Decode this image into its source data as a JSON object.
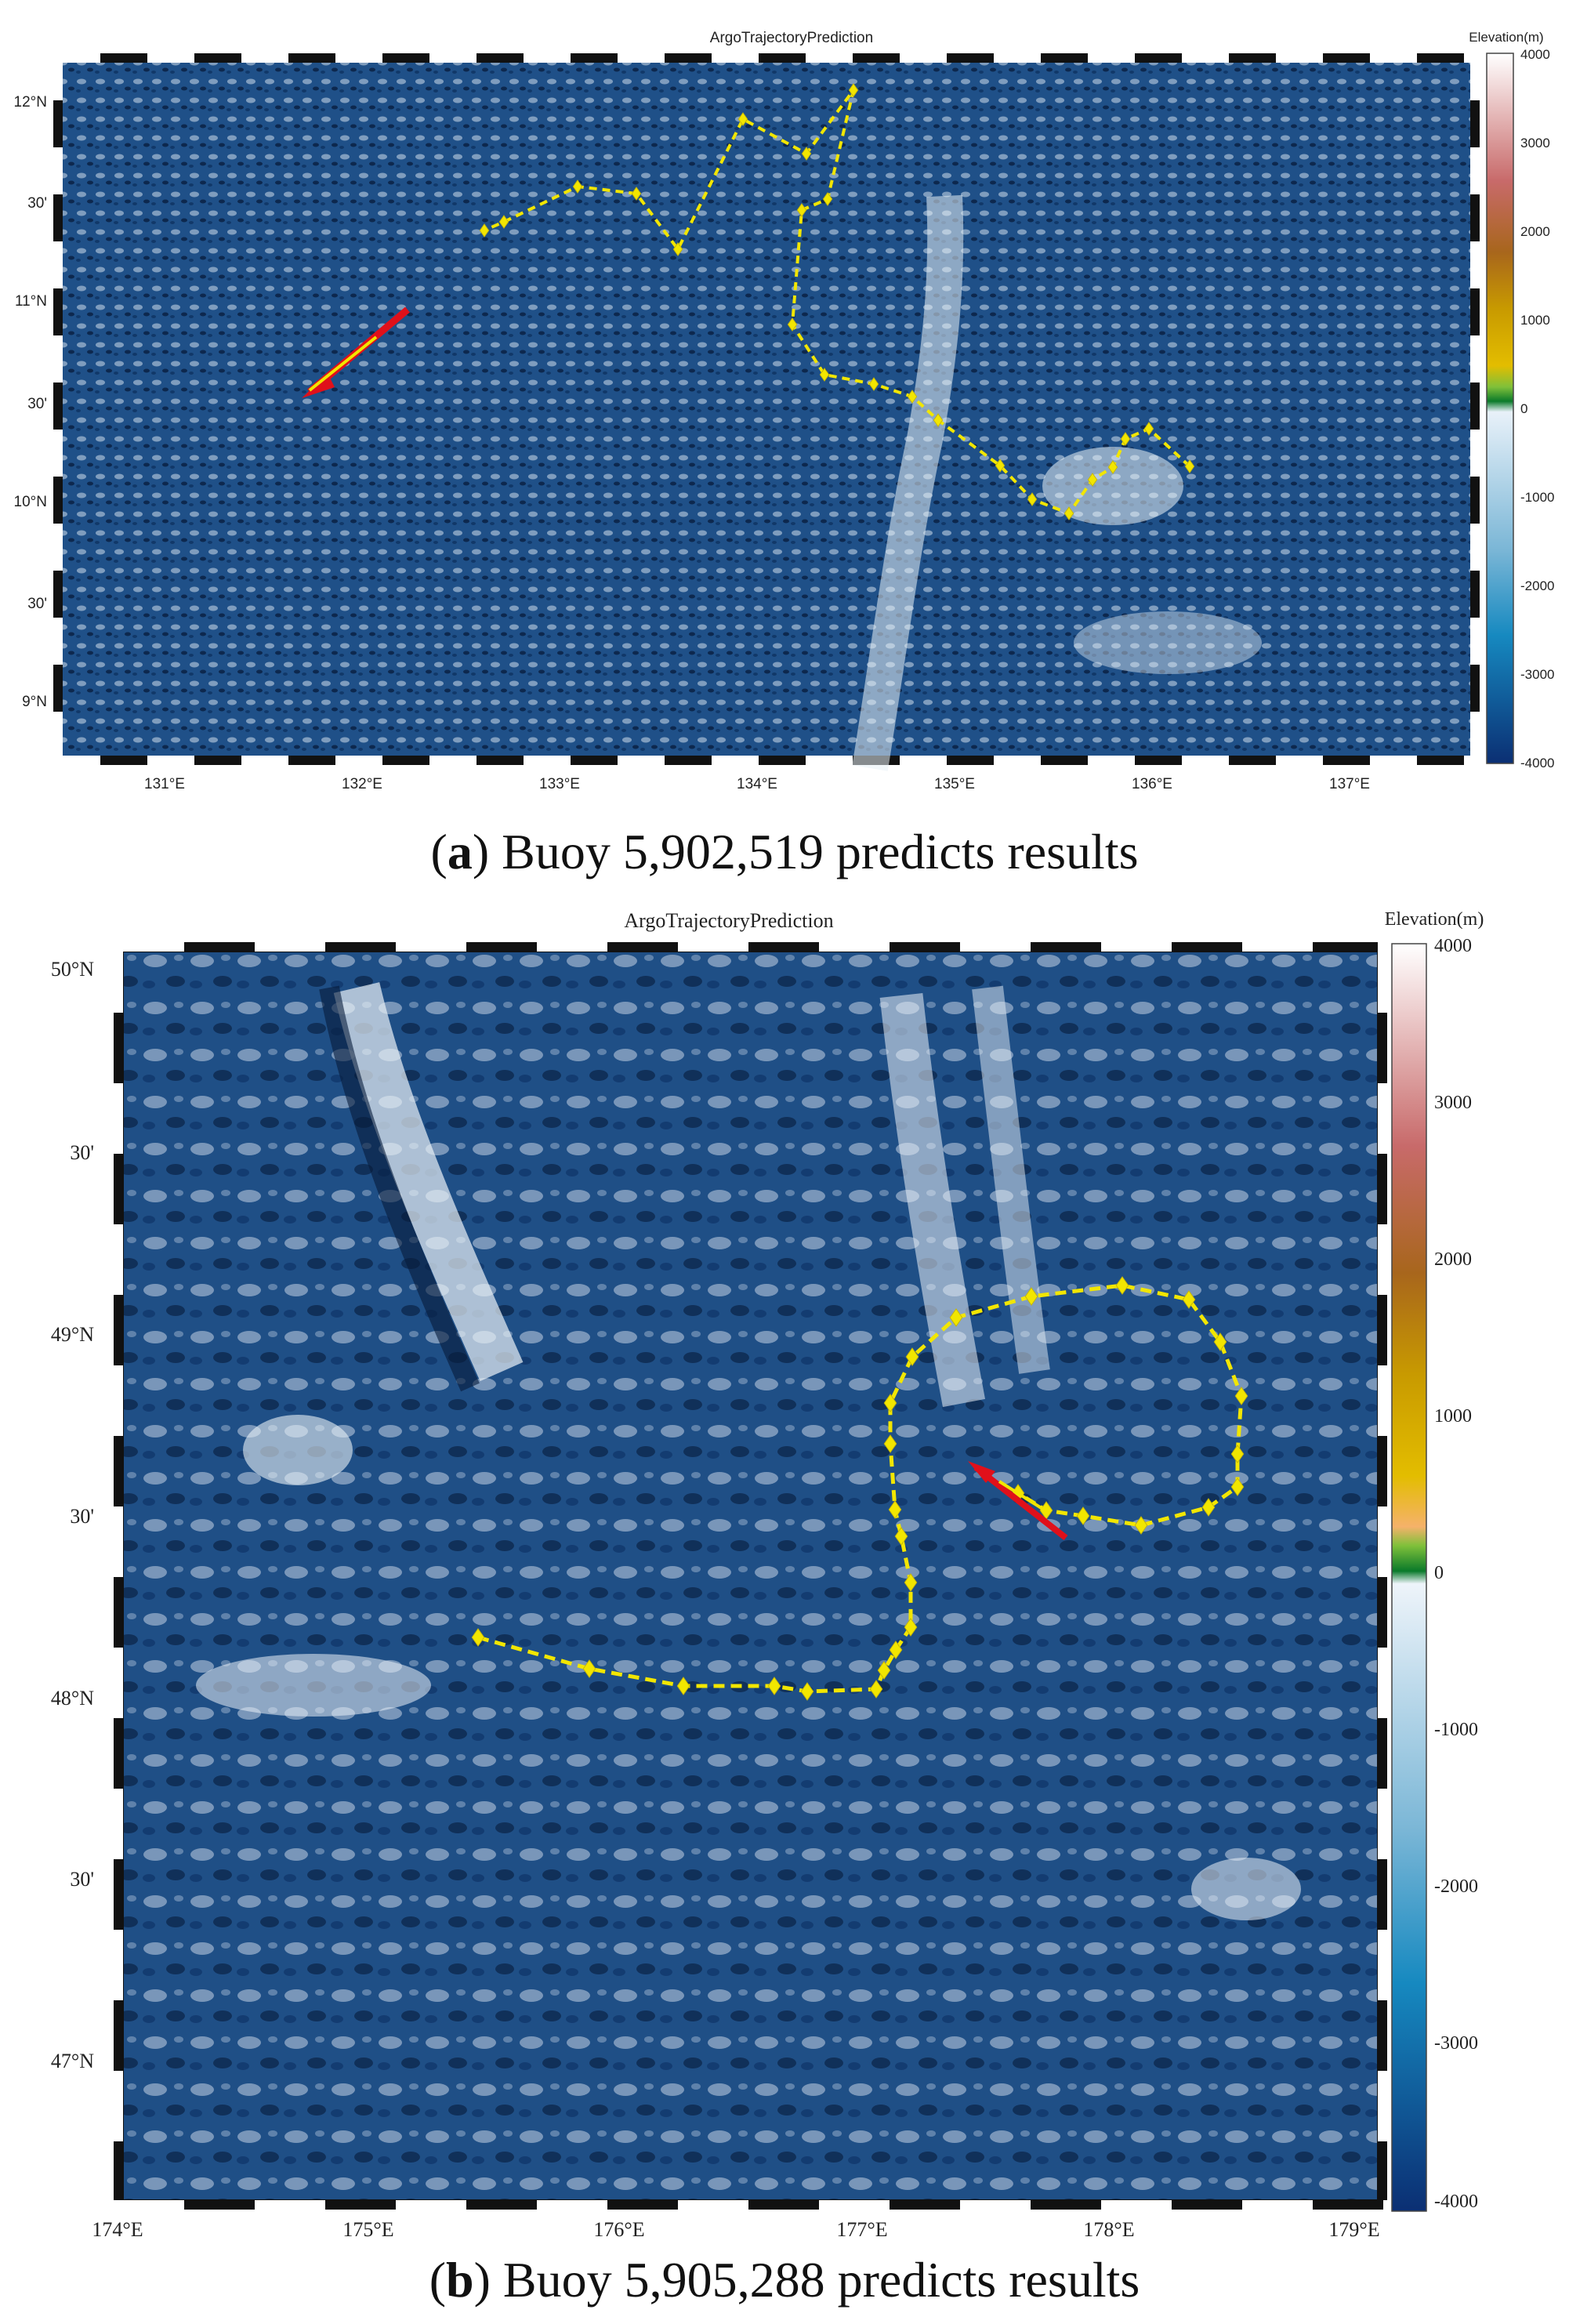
{
  "maps": [
    {
      "title": "ArgoTrajectoryPrediction",
      "colorbar_label": "Elevation(m)",
      "colorbar_ticks": [
        "4000",
        "3000",
        "2000",
        "1000",
        "0",
        "-1000",
        "-2000",
        "-3000",
        "-4000"
      ],
      "lat_labels": [
        "12°N",
        "30'",
        "11°N",
        "30'",
        "10°N",
        "30'",
        "9°N"
      ],
      "lon_labels": [
        "131°E",
        "132°E",
        "133°E",
        "134°E",
        "135°E",
        "136°E",
        "137°E"
      ],
      "caption_letter": "a",
      "caption_text": "Buoy 5,902,519 predicts results",
      "colors": {
        "trajectory": "#f2e600",
        "arrow": "#e0101a",
        "ocean": "#1e4f86"
      }
    },
    {
      "title": "ArgoTrajectoryPrediction",
      "colorbar_label": "Elevation(m)",
      "colorbar_ticks": [
        "4000",
        "3000",
        "2000",
        "1000",
        "0",
        "-1000",
        "-2000",
        "-3000",
        "-4000"
      ],
      "lat_labels": [
        "50°N",
        "30'",
        "49°N",
        "30'",
        "48°N",
        "30'",
        "47°N"
      ],
      "lon_labels": [
        "174°E",
        "175°E",
        "176°E",
        "177°E",
        "178°E",
        "179°E"
      ],
      "caption_letter": "b",
      "caption_text": "Buoy 5,905,288 predicts results",
      "colors": {
        "trajectory": "#f2e600",
        "arrow": "#e0101a",
        "ocean": "#1e4f86"
      }
    }
  ]
}
